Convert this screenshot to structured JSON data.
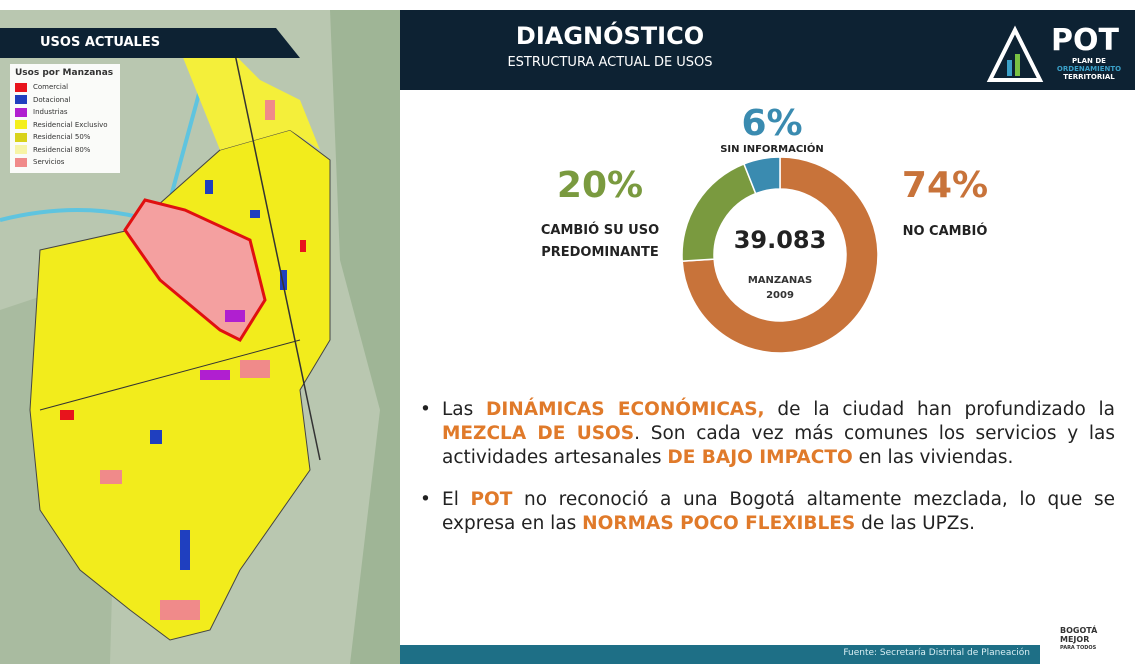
{
  "map": {
    "header": "USOS ACTUALES",
    "legend_title": "Usos por Manzanas",
    "legend": [
      {
        "name": "Comercial",
        "color": "#e8141c"
      },
      {
        "name": "Dotacional",
        "color": "#1f3fbf"
      },
      {
        "name": "Industrias",
        "color": "#b01fd0"
      },
      {
        "name": "Residencial Exclusivo",
        "color": "#f4ef1a"
      },
      {
        "name": "Residencial 50%",
        "color": "#d8d21a"
      },
      {
        "name": "Residencial 80%",
        "color": "#f7f4a6"
      },
      {
        "name": "Servicios",
        "color": "#f08a8a"
      }
    ]
  },
  "header": {
    "title": "DIAGNÓSTICO",
    "subtitle": "ESTRUCTURA ACTUAL DE USOS",
    "logo": "POT",
    "logo_line1": "PLAN DE",
    "logo_line2": "ORDENAMIENTO",
    "logo_line3": "TERRITORIAL"
  },
  "chart_data": {
    "type": "pie",
    "donut": true,
    "categories": [
      "NO CAMBIÓ",
      "CAMBIÓ SU USO PREDOMINANTE",
      "SIN INFORMACIÓN"
    ],
    "values": [
      74,
      20,
      6
    ],
    "value_labels": [
      "74%",
      "20%",
      "6%"
    ],
    "colors": [
      "#c8733a",
      "#7a9a3f",
      "#3a8bb0"
    ],
    "center_value": "39.083",
    "center_line1": "MANZANAS",
    "center_line2": "2009"
  },
  "bullets": [
    [
      {
        "text": "Las ",
        "highlight": false
      },
      {
        "text": "DINÁMICAS ECONÓMICAS,",
        "highlight": true
      },
      {
        "text": " de la ciudad han profundizado la ",
        "highlight": false
      },
      {
        "text": "MEZCLA DE USOS",
        "highlight": true
      },
      {
        "text": ". Son cada vez más comunes los servicios y las actividades artesanales ",
        "highlight": false
      },
      {
        "text": "DE BAJO IMPACTO",
        "highlight": true
      },
      {
        "text": " en las viviendas.",
        "highlight": false
      }
    ],
    [
      {
        "text": "El ",
        "highlight": false
      },
      {
        "text": "POT",
        "highlight": true
      },
      {
        "text": " no reconoció a una Bogotá altamente mezclada, lo que se expresa en las ",
        "highlight": false
      },
      {
        "text": "NORMAS POCO FLEXIBLES",
        "highlight": true
      },
      {
        "text": " de las UPZs.",
        "highlight": false
      }
    ]
  ],
  "footer": {
    "source": "Fuente: Secretaría Distrital de Planeación",
    "brand_line1": "BOGOTÁ",
    "brand_line2": "MEJOR",
    "brand_line3": "PARA TODOS"
  }
}
